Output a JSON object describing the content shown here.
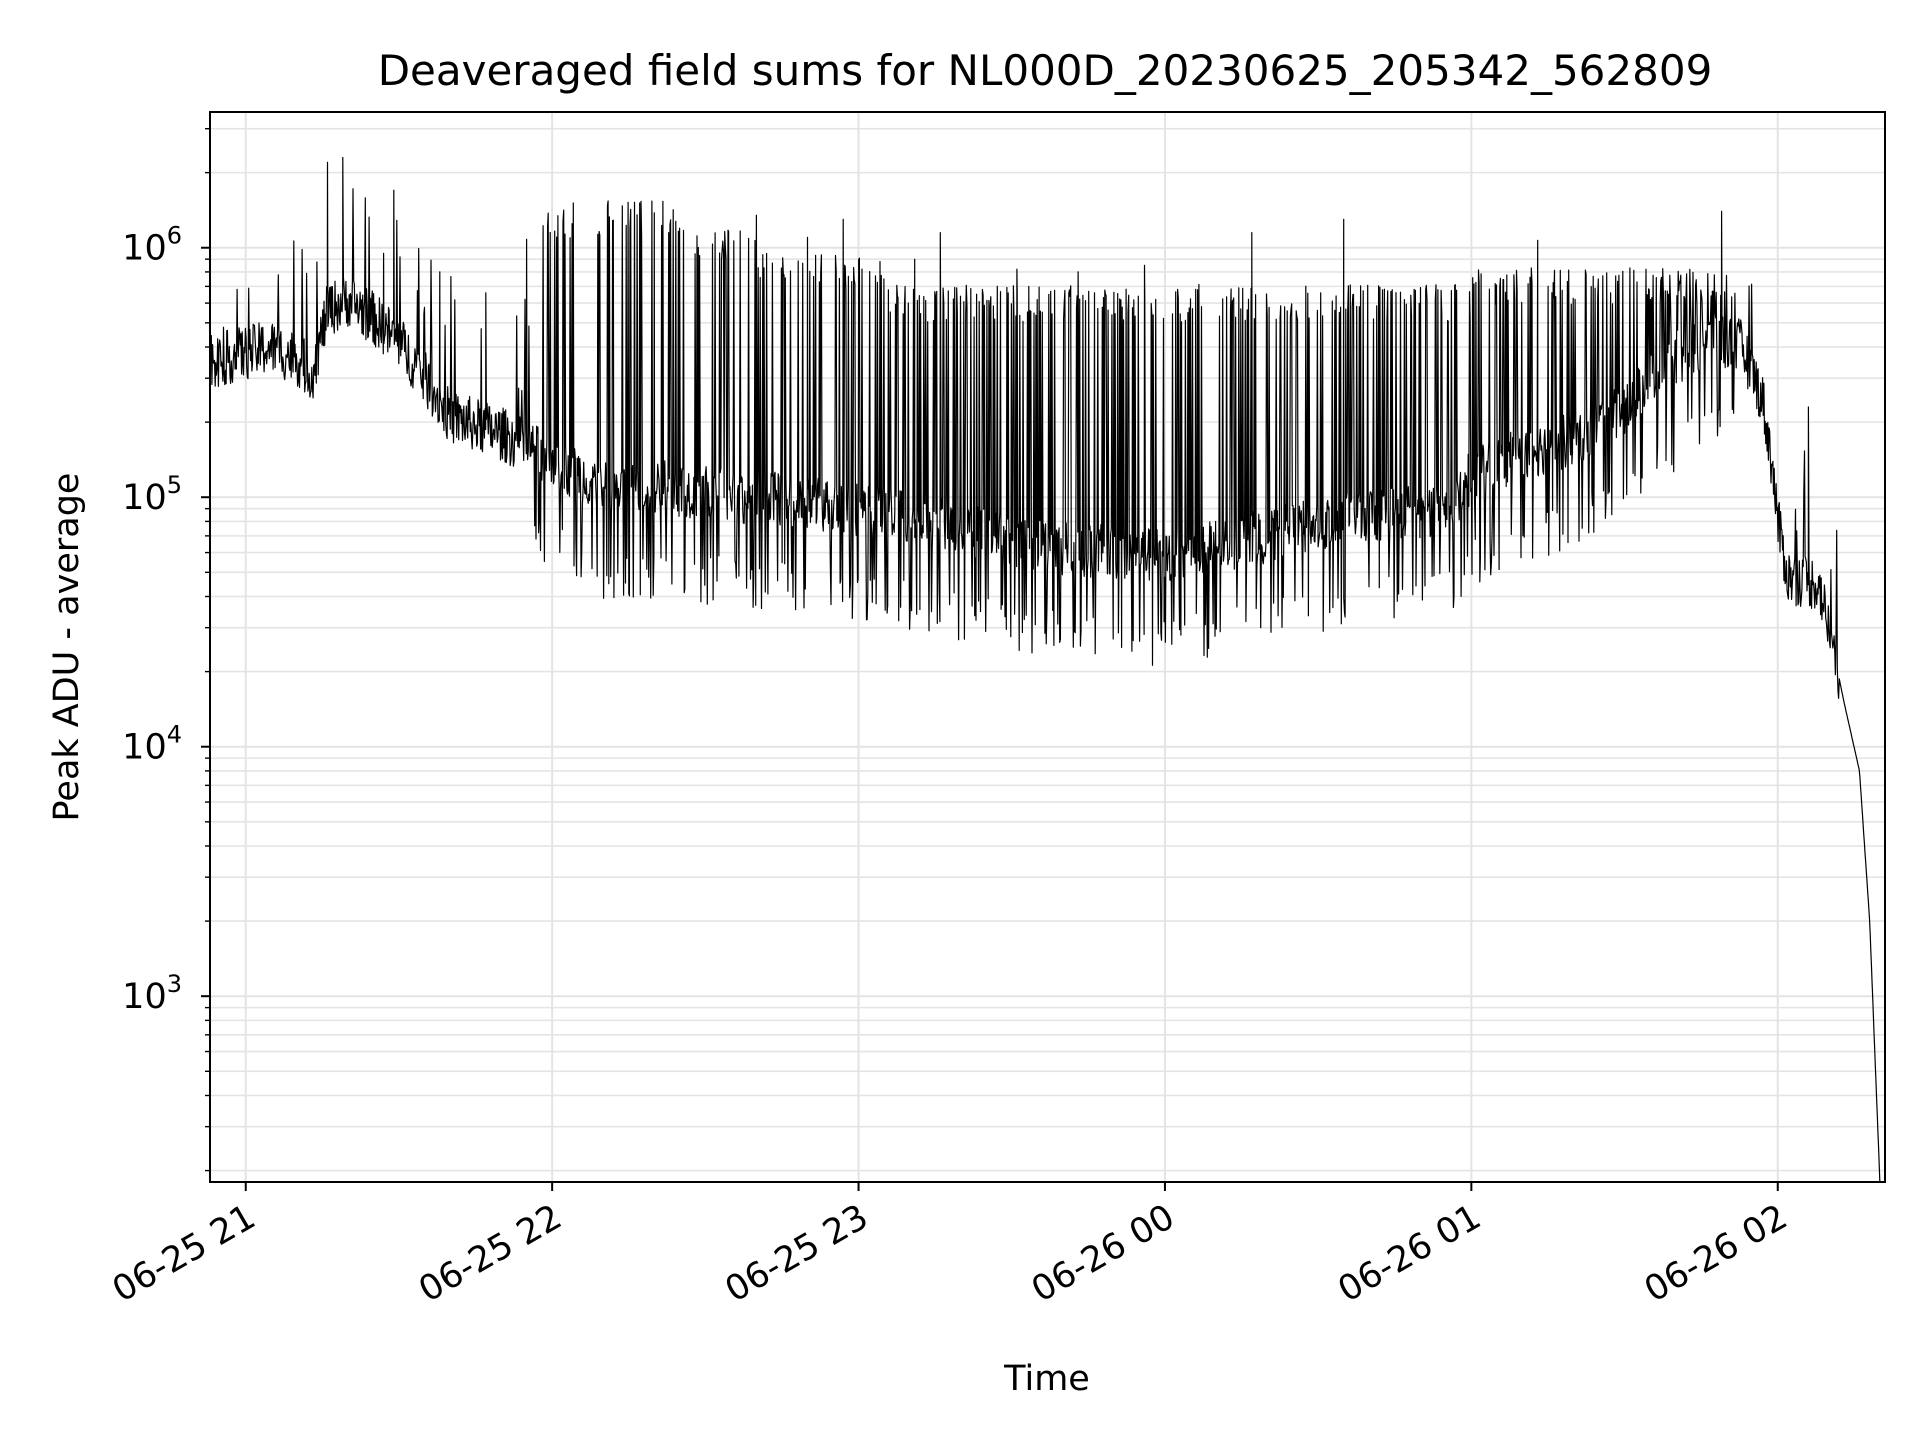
{
  "chart_data": {
    "type": "line",
    "title": "Deaveraged field sums for NL000D_20230625_205342_562809",
    "xlabel": "Time",
    "ylabel": "Peak ADU - average",
    "xscale": "time",
    "yscale": "log",
    "xlim": [
      "2023-06-25 20:53",
      "2023-06-26 02:21"
    ],
    "ylim": [
      180,
      3500000
    ],
    "grid": true,
    "line_color": "#000000",
    "x_ticks": [
      {
        "t": "2023-06-25 21:00",
        "label": "06-25 21"
      },
      {
        "t": "2023-06-25 22:00",
        "label": "06-25 22"
      },
      {
        "t": "2023-06-25 23:00",
        "label": "06-25 23"
      },
      {
        "t": "2023-06-26 00:00",
        "label": "06-26 00"
      },
      {
        "t": "2023-06-26 01:00",
        "label": "06-26 01"
      },
      {
        "t": "2023-06-26 02:00",
        "label": "06-26 02"
      }
    ],
    "y_ticks": [
      {
        "value": 1000,
        "base": "10",
        "exp": "3"
      },
      {
        "value": 10000,
        "base": "10",
        "exp": "4"
      },
      {
        "value": 100000,
        "base": "10",
        "exp": "5"
      },
      {
        "value": 1000000,
        "base": "10",
        "exp": "6"
      }
    ],
    "series": [
      {
        "baseline": [
          [
            "2023-06-25 20:53",
            350000
          ],
          [
            "2023-06-25 21:05",
            400000
          ],
          [
            "2023-06-25 21:10",
            360000
          ],
          [
            "2023-06-25 21:13",
            310000
          ],
          [
            "2023-06-25 21:16",
            560000
          ],
          [
            "2023-06-25 21:20",
            620000
          ],
          [
            "2023-06-25 21:25",
            520000
          ],
          [
            "2023-06-25 21:30",
            420000
          ],
          [
            "2023-06-25 21:35",
            300000
          ],
          [
            "2023-06-25 21:40",
            210000
          ],
          [
            "2023-06-25 21:50",
            180000
          ],
          [
            "2023-06-25 22:00",
            140000
          ],
          [
            "2023-06-25 22:10",
            110000
          ],
          [
            "2023-06-25 22:20",
            110000
          ],
          [
            "2023-06-25 22:40",
            100000
          ],
          [
            "2023-06-25 23:00",
            90000
          ],
          [
            "2023-06-25 23:20",
            75000
          ],
          [
            "2023-06-25 23:40",
            62000
          ],
          [
            "2023-06-26 00:00",
            58000
          ],
          [
            "2023-06-26 00:20",
            70000
          ],
          [
            "2023-06-26 00:40",
            85000
          ],
          [
            "2023-06-26 00:55",
            90000
          ],
          [
            "2023-06-26 01:00",
            120000
          ],
          [
            "2023-06-26 01:10",
            150000
          ],
          [
            "2023-06-26 01:20",
            170000
          ],
          [
            "2023-06-26 01:30",
            230000
          ],
          [
            "2023-06-26 01:40",
            360000
          ],
          [
            "2023-06-26 01:48",
            440000
          ],
          [
            "2023-06-26 01:53",
            400000
          ],
          [
            "2023-06-26 01:57",
            250000
          ],
          [
            "2023-06-26 01:59",
            130000
          ],
          [
            "2023-06-26 02:00",
            80000
          ],
          [
            "2023-06-26 02:02",
            48000
          ],
          [
            "2023-06-26 02:08",
            45000
          ],
          [
            "2023-06-26 02:10",
            30000
          ],
          [
            "2023-06-26 02:13",
            15000
          ],
          [
            "2023-06-26 02:16",
            8000
          ],
          [
            "2023-06-26 02:18",
            2000
          ],
          [
            "2023-06-26 02:20",
            180
          ]
        ],
        "spikes": [
          [
            "2023-06-25 21:16",
            2200000
          ],
          [
            "2023-06-25 21:19",
            2300000
          ],
          [
            "2023-06-25 21:29",
            1700000
          ],
          [
            "2023-06-25 21:27",
            950000
          ],
          [
            "2023-06-25 21:38",
            800000
          ],
          [
            "2023-06-25 21:47",
            660000
          ],
          [
            "2023-06-25 21:55",
            1080000
          ],
          [
            "2023-06-25 22:20",
            1380000
          ],
          [
            "2023-06-25 22:40",
            1350000
          ],
          [
            "2023-06-25 22:50",
            1100000
          ],
          [
            "2023-06-25 22:57",
            1300000
          ],
          [
            "2023-06-25 23:11",
            900000
          ],
          [
            "2023-06-25 23:16",
            1150000
          ],
          [
            "2023-06-25 23:31",
            820000
          ],
          [
            "2023-06-25 23:43",
            800000
          ],
          [
            "2023-06-25 23:56",
            850000
          ],
          [
            "2023-06-26 00:17",
            1150000
          ],
          [
            "2023-06-26 00:35",
            1300000
          ],
          [
            "2023-06-26 01:13",
            1070000
          ],
          [
            "2023-06-26 01:49",
            1400000
          ],
          [
            "2023-06-26 02:06",
            230000
          ]
        ],
        "burst_region": [
          [
            "2023-06-25 21:56",
            "2023-06-25 22:26",
            1300000
          ],
          [
            "2023-06-25 22:26",
            "2023-06-25 22:40",
            1050000
          ],
          [
            "2023-06-25 22:40",
            "2023-06-25 23:05",
            800000
          ],
          [
            "2023-06-25 23:05",
            "2023-06-26 01:00",
            600000
          ],
          [
            "2023-06-26 01:00",
            "2023-06-26 01:52",
            700000
          ]
        ]
      }
    ]
  }
}
